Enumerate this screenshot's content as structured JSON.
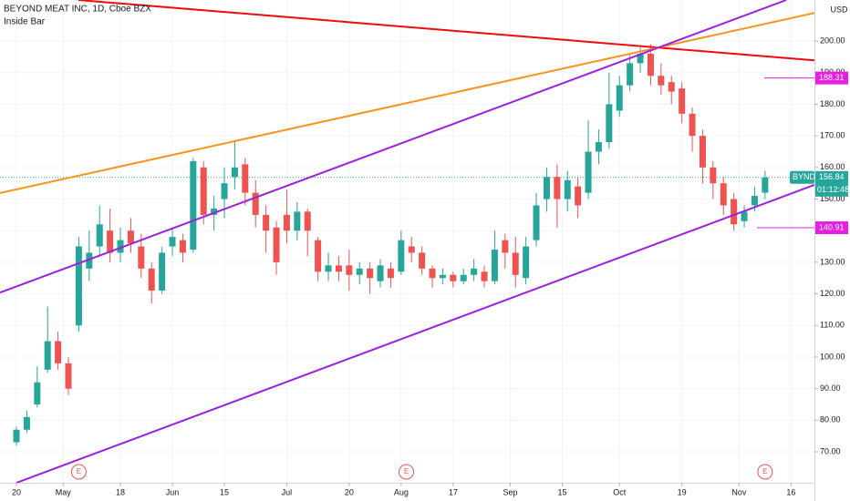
{
  "chart_data": {
    "type": "candlestick",
    "title": "BEYOND MEAT INC, 1D, Cboe BZX",
    "indicator": "Inside Bar",
    "currency": "USD",
    "symbol": "BYND",
    "countdown": "01:12:48",
    "last_price": 156.84,
    "up_color": "#26a69a",
    "down_color": "#ef5350",
    "x": [
      0,
      2,
      4,
      6,
      8,
      10,
      12,
      14,
      16,
      18,
      20,
      22,
      24,
      26,
      28,
      30,
      32,
      34,
      36,
      38,
      40,
      42,
      44,
      46,
      48,
      50,
      52,
      54,
      56,
      58,
      60,
      62,
      64,
      66,
      68,
      70,
      72,
      74,
      76,
      78,
      80,
      82,
      84,
      86,
      88,
      90,
      92,
      94,
      96,
      98,
      100,
      102,
      104,
      106,
      108,
      110,
      112,
      114,
      116,
      118,
      120,
      122,
      124,
      126,
      128,
      130,
      132,
      134,
      136,
      138,
      140,
      142,
      144
    ],
    "open": [
      73,
      77,
      85,
      96,
      105,
      98,
      110,
      128,
      135,
      140,
      133,
      140,
      135,
      128,
      121,
      135,
      137,
      134,
      160,
      145,
      150,
      157,
      161,
      152,
      145,
      141,
      145,
      140,
      146,
      137,
      127,
      129,
      129,
      126,
      128,
      124,
      128,
      127,
      135,
      133,
      128,
      125,
      126,
      124,
      126,
      127,
      124,
      137,
      133,
      125,
      137,
      150,
      157,
      150,
      154,
      152,
      165,
      168,
      178,
      186,
      193,
      196,
      189,
      187,
      185,
      177,
      170,
      160,
      155,
      150,
      143,
      148,
      152
    ],
    "high": [
      78,
      83,
      97,
      116,
      108,
      100,
      138,
      140,
      148,
      147,
      141,
      144,
      139,
      130,
      135,
      141,
      139,
      163,
      162,
      151,
      160,
      168,
      163,
      156,
      148,
      143,
      153,
      149,
      147,
      138,
      133,
      132,
      134,
      130,
      130,
      131,
      130,
      140,
      138,
      135,
      129,
      128,
      127,
      128,
      131,
      129,
      140,
      139,
      138,
      138,
      152,
      160,
      161,
      159,
      157,
      175,
      172,
      190,
      189,
      196,
      198,
      199,
      193,
      189,
      187,
      179,
      172,
      162,
      157,
      152,
      148,
      154,
      159
    ],
    "low": [
      72,
      76,
      84,
      95,
      96,
      88,
      108,
      124,
      132,
      130,
      130,
      133,
      125,
      117,
      120,
      132,
      130,
      133,
      142,
      140,
      144,
      153,
      148,
      141,
      133,
      126,
      136,
      137,
      132,
      124,
      124,
      124,
      121,
      123,
      120,
      122,
      122,
      126,
      130,
      126,
      122,
      123,
      122,
      123,
      124,
      122,
      123,
      128,
      122,
      123,
      135,
      146,
      141,
      146,
      144,
      150,
      161,
      166,
      176,
      184,
      190,
      186,
      183,
      180,
      174,
      165,
      155,
      150,
      145,
      140,
      141,
      146,
      150
    ],
    "close": [
      77,
      81,
      92,
      105,
      98,
      90,
      135,
      133,
      142,
      133,
      137,
      136,
      128,
      121,
      133,
      138,
      133,
      162,
      145,
      147,
      155,
      160,
      152,
      145,
      140,
      130,
      140,
      146,
      140,
      127,
      129,
      127,
      126,
      128,
      125,
      129,
      125,
      137,
      133,
      128,
      125,
      126,
      124,
      126,
      128,
      124,
      134,
      133,
      126,
      135,
      148,
      157,
      150,
      156,
      148,
      165,
      168,
      180,
      186,
      193,
      196,
      189,
      186,
      184,
      177,
      170,
      160,
      155,
      148,
      142,
      146,
      151,
      156.84
    ],
    "xlim": [
      -3.16,
      153.5
    ],
    "ylim": [
      60.2,
      213
    ],
    "xticks": [
      {
        "value": 0,
        "label": "20"
      },
      {
        "value": 9,
        "label": "May"
      },
      {
        "value": 20,
        "label": "18"
      },
      {
        "value": 30,
        "label": "Jun"
      },
      {
        "value": 40,
        "label": "15"
      },
      {
        "value": 52,
        "label": "Jul"
      },
      {
        "value": 64,
        "label": "20"
      },
      {
        "value": 74,
        "label": "Aug"
      },
      {
        "value": 84,
        "label": "17"
      },
      {
        "value": 95,
        "label": "Sep"
      },
      {
        "value": 105,
        "label": "15"
      },
      {
        "value": 116,
        "label": "Oct"
      },
      {
        "value": 128,
        "label": "19"
      },
      {
        "value": 139,
        "label": "Nov"
      },
      {
        "value": 149,
        "label": "16"
      }
    ],
    "yticks": [
      {
        "value": 70,
        "label": "70.00"
      },
      {
        "value": 80,
        "label": "80.00"
      },
      {
        "value": 90,
        "label": "90.00"
      },
      {
        "value": 100,
        "label": "100.00"
      },
      {
        "value": 110,
        "label": "110.00"
      },
      {
        "value": 120,
        "label": "120.00"
      },
      {
        "value": 130,
        "label": "130.00"
      },
      {
        "value": 140,
        "label": "140.00"
      },
      {
        "value": 150,
        "label": "150.00"
      },
      {
        "value": 160,
        "label": "160.00"
      },
      {
        "value": 170,
        "label": "170.00"
      },
      {
        "value": 180,
        "label": "180.00"
      },
      {
        "value": 190,
        "label": "190.00"
      },
      {
        "value": 200,
        "label": "200.00"
      }
    ],
    "levels": [
      {
        "value": 188.31,
        "color": "#e91ee3"
      },
      {
        "value": 140.91,
        "color": "#e91ee3"
      }
    ],
    "trend_lines": [
      {
        "color": "#f00a0a",
        "points": [
          [
            11.9,
            213
          ],
          [
            153.5,
            193.9
          ]
        ]
      },
      {
        "color": "#f7931a",
        "points": [
          [
            -3.16,
            151.9
          ],
          [
            153.5,
            208.9
          ]
        ]
      },
      {
        "color": "#9c1fe0",
        "points": [
          [
            -3.16,
            120.4
          ],
          [
            148.1,
            213
          ]
        ]
      },
      {
        "color": "#9c1fe0",
        "points": [
          [
            0,
            60.2
          ],
          [
            153.5,
            154.5
          ]
        ]
      }
    ],
    "earnings": [
      {
        "x": 12,
        "label": "E"
      },
      {
        "x": 75,
        "label": "E"
      },
      {
        "x": 144,
        "label": "E"
      }
    ]
  }
}
